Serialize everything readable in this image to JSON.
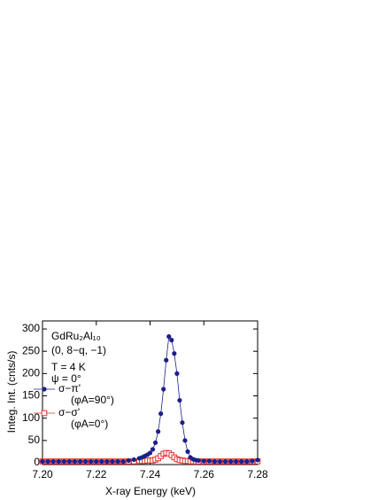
{
  "chart_data": {
    "type": "line",
    "annotations": [
      "GdRu₂Al₁₀",
      "(0, 8−q, −1)",
      "T = 4 K",
      "ψ = 0°"
    ],
    "xlabel": "X-ray Energy  (keV)",
    "ylabel": "Integ. Int.  (cnts/s)",
    "x": [
      7.2,
      7.202,
      7.204,
      7.206,
      7.208,
      7.21,
      7.212,
      7.214,
      7.216,
      7.218,
      7.22,
      7.222,
      7.224,
      7.226,
      7.228,
      7.23,
      7.232,
      7.234,
      7.236,
      7.237,
      7.238,
      7.239,
      7.24,
      7.241,
      7.242,
      7.243,
      7.244,
      7.245,
      7.246,
      7.247,
      7.248,
      7.249,
      7.25,
      7.251,
      7.252,
      7.253,
      7.254,
      7.255,
      7.256,
      7.257,
      7.258,
      7.26,
      7.262,
      7.264,
      7.266,
      7.268,
      7.27,
      7.272,
      7.274,
      7.276,
      7.278,
      7.28
    ],
    "series": [
      {
        "name": "σ−π'",
        "sublabel": "(φA=90°)",
        "color": "#1c1f8a",
        "marker": "filled-circle",
        "values": [
          3,
          3,
          3,
          3,
          3,
          3,
          3,
          3,
          3,
          3,
          3,
          3,
          3,
          3,
          3,
          3,
          5,
          7,
          10,
          12,
          15,
          18,
          22,
          30,
          45,
          70,
          110,
          165,
          230,
          283,
          275,
          245,
          200,
          140,
          90,
          50,
          25,
          12,
          8,
          6,
          5,
          4,
          4,
          3,
          3,
          3,
          3,
          3,
          3,
          3,
          4,
          6
        ]
      },
      {
        "name": "σ−σ'",
        "sublabel": "(φA=0°)",
        "color": "#e0302c",
        "marker": "open-square",
        "values": [
          3,
          3,
          3,
          3,
          3,
          3,
          3,
          3,
          3,
          3,
          3,
          3,
          3,
          3,
          3,
          3,
          3,
          3,
          4,
          4,
          4,
          5,
          5,
          5,
          7,
          10,
          15,
          20,
          22,
          21,
          17,
          12,
          8,
          6,
          5,
          4,
          4,
          3,
          3,
          3,
          3,
          3,
          3,
          3,
          3,
          3,
          3,
          3,
          3,
          3,
          3,
          3
        ]
      }
    ],
    "xlim": [
      7.2,
      7.28
    ],
    "xticks": [
      {
        "value": 7.2,
        "label": "7.20"
      },
      {
        "value": 7.22,
        "label": "7.22"
      },
      {
        "value": 7.24,
        "label": "7.24"
      },
      {
        "value": 7.26,
        "label": "7.26"
      },
      {
        "value": 7.28,
        "label": "7.28"
      }
    ],
    "ylim": [
      -4,
      318
    ],
    "yticks": [
      0,
      50,
      100,
      150,
      200,
      250,
      300
    ]
  }
}
